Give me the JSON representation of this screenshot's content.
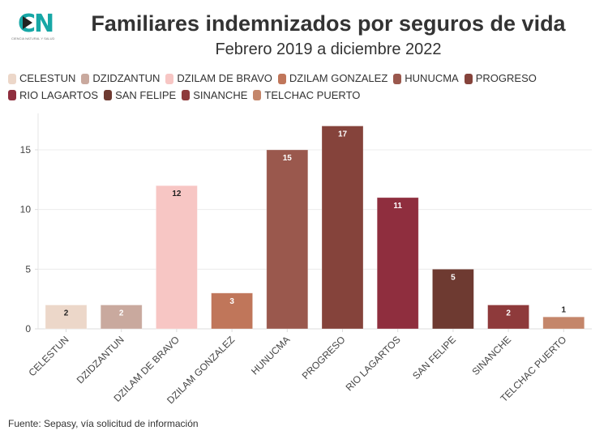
{
  "logo": {
    "letters": "CN",
    "tagline": "CIENCIA NATURAL Y SALUD"
  },
  "header": {
    "title": "Familiares indemnizados por seguros de vida",
    "subtitle": "Febrero 2019 a diciembre 2022"
  },
  "legend": [
    {
      "label": "CELESTUN",
      "color": "#ecd7c9"
    },
    {
      "label": "DZIDZANTUN",
      "color": "#c9a99e"
    },
    {
      "label": "DZILAM DE BRAVO",
      "color": "#f7c6c4"
    },
    {
      "label": "DZILAM GONZALEZ",
      "color": "#c0765a"
    },
    {
      "label": "HUNUCMA",
      "color": "#9a584d"
    },
    {
      "label": "PROGRESO",
      "color": "#85433b"
    },
    {
      "label": "RIO LAGARTOS",
      "color": "#8f2e3e"
    },
    {
      "label": "SAN FELIPE",
      "color": "#6e3a31"
    },
    {
      "label": "SINANCHE",
      "color": "#8e3a3b"
    },
    {
      "label": "TELCHAC PUERTO",
      "color": "#c4866a"
    }
  ],
  "footer": {
    "source": "Fuente: Sepasy, vía solicitud de información"
  },
  "chart_data": {
    "type": "bar",
    "title": "Familiares indemnizados por seguros de vida",
    "subtitle": "Febrero 2019 a diciembre 2022",
    "xlabel": "",
    "ylabel": "",
    "categories": [
      "CELESTUN",
      "DZIDZANTUN",
      "DZILAM DE BRAVO",
      "DZILAM GONZALEZ",
      "HUNUCMA",
      "PROGRESO",
      "RIO LAGARTOS",
      "SAN FELIPE",
      "SINANCHE",
      "TELCHAC PUERTO"
    ],
    "values": [
      2,
      2,
      12,
      3,
      15,
      17,
      11,
      5,
      2,
      1
    ],
    "colors": [
      "#ecd7c9",
      "#c9a99e",
      "#f7c6c4",
      "#c0765a",
      "#9a584d",
      "#85433b",
      "#8f2e3e",
      "#6e3a31",
      "#8e3a3b",
      "#c4866a"
    ],
    "label_colors": [
      "#222222",
      "#ffffff",
      "#222222",
      "#ffffff",
      "#ffffff",
      "#ffffff",
      "#ffffff",
      "#ffffff",
      "#ffffff",
      "#222222"
    ],
    "label_outside": [
      false,
      false,
      false,
      false,
      false,
      false,
      false,
      false,
      false,
      true
    ],
    "yticks": [
      0,
      5,
      10,
      15
    ],
    "ylim": [
      0,
      18.5
    ],
    "grid": true,
    "legend_position": "top"
  }
}
